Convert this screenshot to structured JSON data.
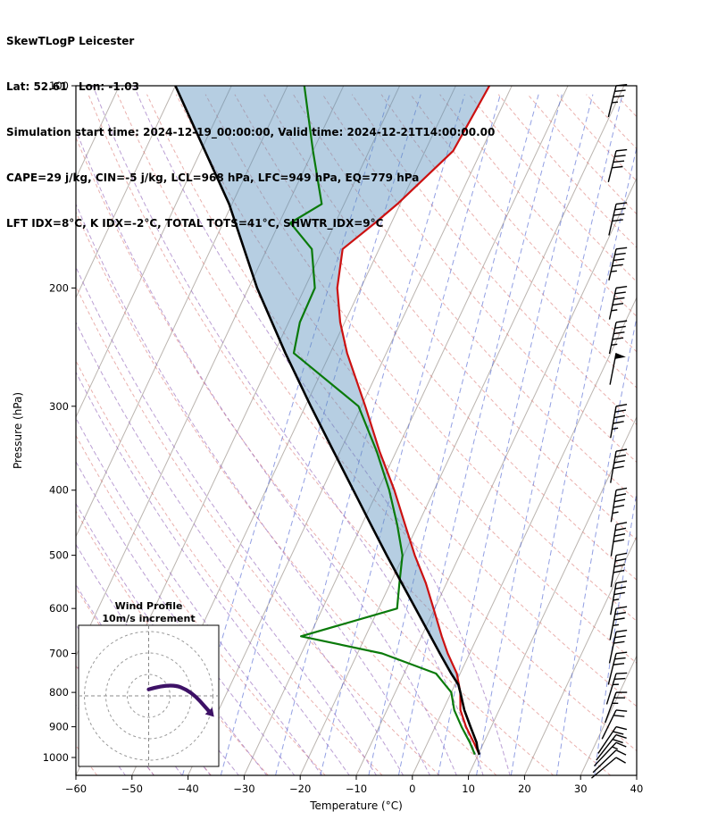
{
  "header": {
    "title": "SkewTLogP Leicester",
    "lat_lon": "Lat: 52.61   Lon: -1.03",
    "times": "Simulation start time: 2024-12-19_00:00:00, Valid time: 2024-12-21T14:00:00.00",
    "indices1": "CAPE=29 j/kg, CIN=-5 j/kg, LCL=968 hPa, LFC=949 hPa, EQ=779 hPa",
    "indices2": "LFT IDX=8°C, K IDX=-2°C, TOTAL TOTS=41°C, SHWTR_IDX=9°C"
  },
  "axes": {
    "x_label": "Temperature (°C)",
    "y_label": "Pressure (hPa)",
    "x_ticks": [
      -60,
      -50,
      -40,
      -30,
      -20,
      -10,
      0,
      10,
      20,
      30,
      40
    ],
    "y_ticks": [
      100,
      200,
      300,
      400,
      500,
      600,
      700,
      800,
      900,
      1000
    ]
  },
  "hodograph": {
    "title_line1": "Wind Profile",
    "title_line2": "10m/s increment",
    "ring_interval_m_s": 10,
    "rings_m_s": [
      10,
      20,
      30
    ],
    "trace_u_v_m_s": [
      [
        0,
        3
      ],
      [
        10,
        6
      ],
      [
        20,
        2
      ],
      [
        28,
        -7
      ]
    ]
  },
  "chart_data": {
    "type": "skewt-logp",
    "skew_deg": 30,
    "pressure_range_hpa": [
      100,
      1063
    ],
    "temperature_axis_c": [
      -60,
      40
    ],
    "sounding": {
      "pressure_hpa": [
        990,
        950,
        900,
        850,
        800,
        750,
        700,
        660,
        600,
        550,
        500,
        450,
        400,
        350,
        300,
        250,
        225,
        200,
        175,
        160,
        150,
        125,
        100
      ],
      "temperature_c": [
        10.2,
        8.2,
        5.5,
        3.1,
        1.6,
        -0.6,
        -3.9,
        -6.4,
        -10.2,
        -13.7,
        -18.0,
        -22.3,
        -27.1,
        -33.0,
        -39.3,
        -47.0,
        -50.8,
        -54.2,
        -56.5,
        -52.9,
        -50.5,
        -45.0,
        -44.0
      ],
      "dewpoint_c": [
        9.4,
        7.5,
        4.7,
        2.0,
        0.0,
        -4.3,
        -15.6,
        -31.5,
        -16.7,
        -18.4,
        -20.2,
        -23.7,
        -28.0,
        -33.5,
        -40.5,
        -56.5,
        -58.0,
        -58.2,
        -62.0,
        -68.0,
        -64.0,
        -70.0,
        -77.0
      ]
    },
    "parcel": {
      "pressure_hpa": [
        990,
        968,
        950,
        900,
        850,
        800,
        779,
        750,
        700,
        650,
        600,
        550,
        500,
        450,
        400,
        350,
        300,
        250,
        200,
        150,
        100
      ],
      "temperature_c": [
        10.2,
        9.3,
        8.7,
        6.3,
        3.8,
        1.6,
        0.6,
        -1.6,
        -5.3,
        -9.2,
        -13.4,
        -18.0,
        -23.0,
        -28.4,
        -34.4,
        -41.2,
        -49.0,
        -58.0,
        -68.5,
        -80.5,
        -100.0
      ],
      "eq_level_hpa": 779
    },
    "wind_barbs_kt": [
      {
        "p": 100,
        "kt": 35,
        "ang": 14
      },
      {
        "p": 125,
        "kt": 40,
        "ang": 14
      },
      {
        "p": 150,
        "kt": 40,
        "ang": 13
      },
      {
        "p": 175,
        "kt": 45,
        "ang": 13
      },
      {
        "p": 200,
        "kt": 45,
        "ang": 12
      },
      {
        "p": 225,
        "kt": 45,
        "ang": 12
      },
      {
        "p": 250,
        "kt": 50,
        "ang": 11
      },
      {
        "p": 300,
        "kt": 45,
        "ang": 10
      },
      {
        "p": 350,
        "kt": 40,
        "ang": 10
      },
      {
        "p": 400,
        "kt": 45,
        "ang": 9
      },
      {
        "p": 450,
        "kt": 40,
        "ang": 9
      },
      {
        "p": 500,
        "kt": 40,
        "ang": 9
      },
      {
        "p": 550,
        "kt": 35,
        "ang": 10
      },
      {
        "p": 600,
        "kt": 35,
        "ang": 11
      },
      {
        "p": 650,
        "kt": 30,
        "ang": 12
      },
      {
        "p": 700,
        "kt": 30,
        "ang": 14
      },
      {
        "p": 750,
        "kt": 25,
        "ang": 17
      },
      {
        "p": 800,
        "kt": 25,
        "ang": 20
      },
      {
        "p": 850,
        "kt": 20,
        "ang": 26
      },
      {
        "p": 900,
        "kt": 20,
        "ang": 34
      },
      {
        "p": 925,
        "kt": 18,
        "ang": 38
      },
      {
        "p": 950,
        "kt": 15,
        "ang": 43
      },
      {
        "p": 975,
        "kt": 12,
        "ang": 46
      },
      {
        "p": 1000,
        "kt": 10,
        "ang": 50
      }
    ],
    "background": {
      "isotherms_c": {
        "min": -120,
        "max": 40,
        "step": 10
      },
      "dry_adiabats_c": {
        "min": -60,
        "max": 230,
        "step": 10
      },
      "moist_adiabats_c": {
        "min": -55,
        "max": 15,
        "step": 5
      },
      "mixing_ratio_g_kg": [
        0.1,
        0.2,
        0.5,
        1,
        2,
        3,
        5,
        8,
        12,
        20,
        30
      ]
    },
    "colors": {
      "temperature": "#cc1111",
      "dewpoint": "#0a7a0a",
      "parcel": "#000000",
      "cin_shade": "#5d92be",
      "isotherm": "#b3aca6",
      "dry_adiabat": "#d9706a",
      "moist_adiabat": "#8e5fb8",
      "mixing_ratio": "#4a5fd0",
      "barb": "#000000",
      "hodo_arrow": "#3d1166"
    }
  }
}
